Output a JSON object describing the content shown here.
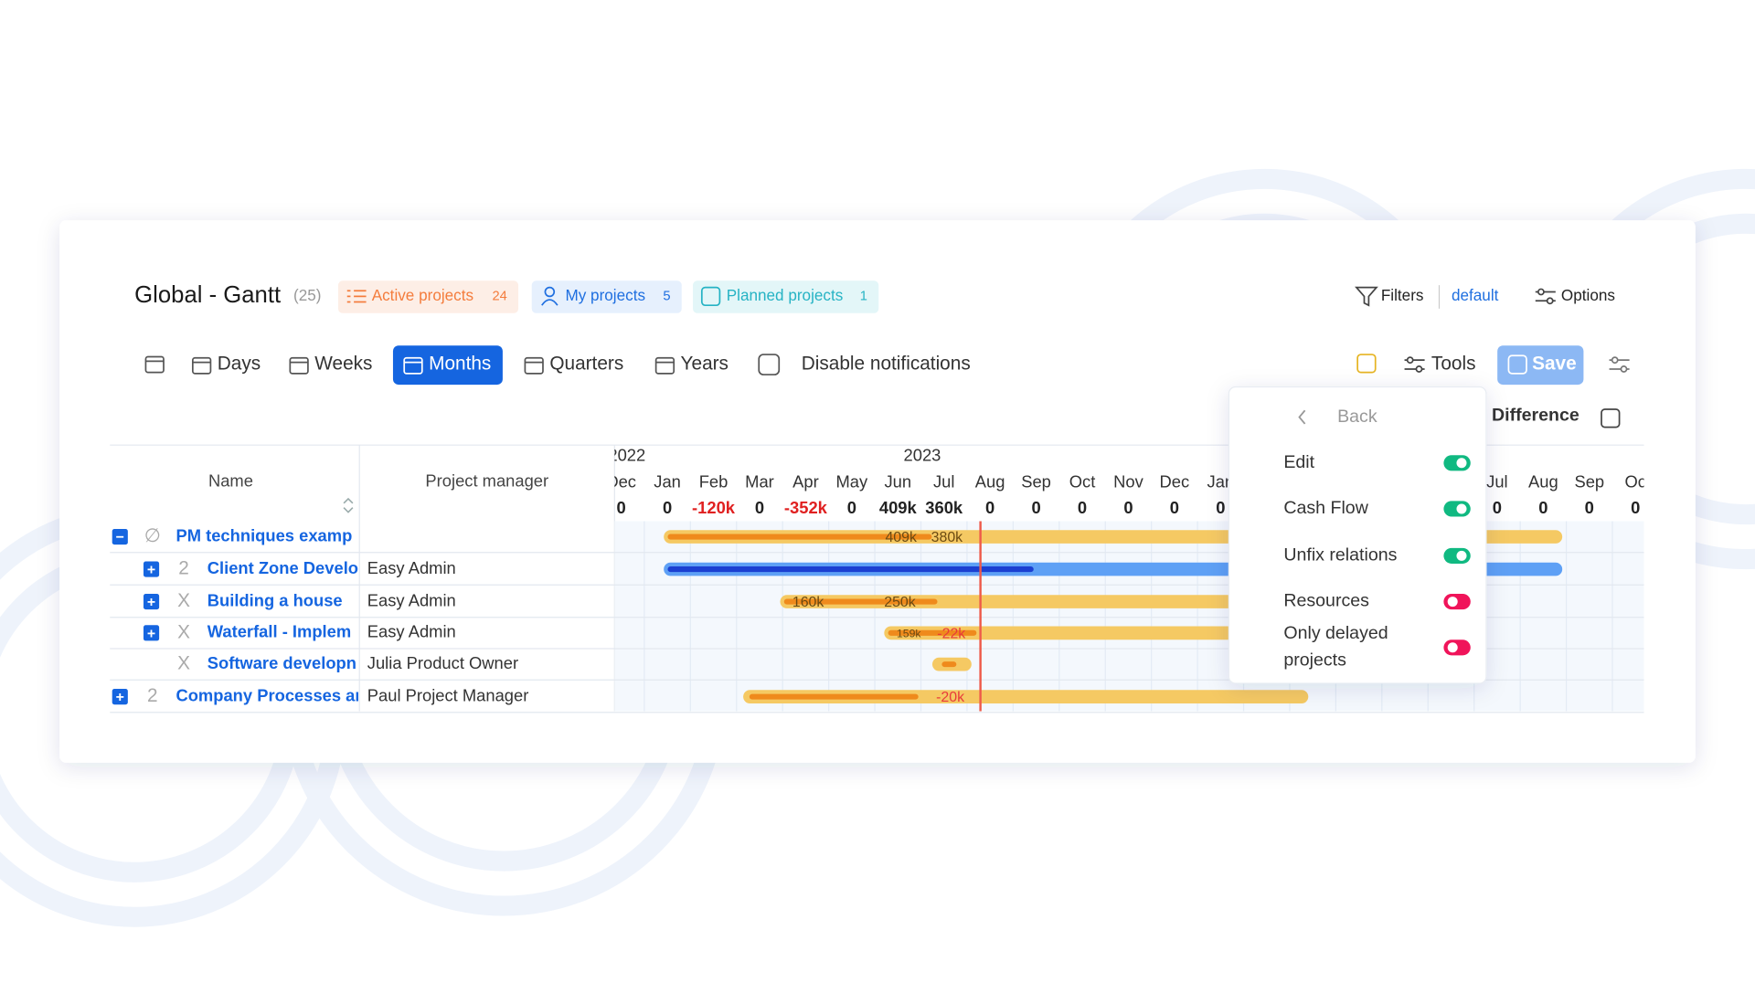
{
  "header": {
    "title": "Global - Gantt",
    "count": "(25)",
    "tabs": [
      {
        "label": "Active projects",
        "count": "24"
      },
      {
        "label": "My projects",
        "count": "5"
      },
      {
        "label": "Planned projects",
        "count": "1"
      }
    ],
    "filters": "Filters",
    "filter_preset": "default",
    "options": "Options"
  },
  "toolbar": {
    "zoom": [
      "Days",
      "Weeks",
      "Months",
      "Quarters",
      "Years"
    ],
    "active_zoom": "Months",
    "disable_notifications": "Disable notifications",
    "tools": "Tools",
    "save": "Save",
    "difference": "Difference"
  },
  "menu": {
    "back": "Back",
    "items": [
      {
        "label": "Edit",
        "on": true
      },
      {
        "label": "Cash Flow",
        "on": true
      },
      {
        "label": "Unfix relations",
        "on": true
      },
      {
        "label": "Resources",
        "on": false
      },
      {
        "label": "Only delayed projects",
        "on": false
      }
    ]
  },
  "table": {
    "columns": [
      "Name",
      "Project manager"
    ],
    "rows": [
      {
        "toggle": "−",
        "marker": "∅",
        "name": "PM techniques examp",
        "manager": null
      },
      {
        "toggle": "+",
        "marker": "2",
        "name": "Client Zone Develo",
        "manager": "Easy Admin"
      },
      {
        "toggle": "+",
        "marker": "X",
        "name": "Building a house",
        "manager": "Easy Admin"
      },
      {
        "toggle": "+",
        "marker": "X",
        "name": "Waterfall - Implem",
        "manager": "Easy Admin"
      },
      {
        "toggle": null,
        "marker": "X",
        "name": "Software developn",
        "manager": "Julia Product Owner"
      },
      {
        "toggle": "+",
        "marker": "2",
        "name": "Company Processes ar",
        "manager": "Paul Project Manager"
      }
    ]
  },
  "timeline": {
    "years": [
      "2022",
      "2023"
    ],
    "months": [
      "Dec",
      "Jan",
      "Feb",
      "Mar",
      "Apr",
      "May",
      "Jun",
      "Jul",
      "Aug",
      "Sep",
      "Oct",
      "Nov",
      "Dec",
      "Jan",
      null,
      null,
      null,
      null,
      null,
      "Jul",
      "Aug",
      "Sep",
      "Oc"
    ],
    "cash_flow": [
      "0",
      "0",
      "-120k",
      "0",
      "-352k",
      "0",
      "409k",
      "360k",
      "0",
      "0",
      "0",
      "0",
      "0",
      "0",
      null,
      null,
      null,
      null,
      null,
      "0",
      "0",
      "0",
      "0"
    ],
    "bar_labels": [
      [
        "409k",
        "380k"
      ],
      [],
      [
        "160k",
        "250k"
      ],
      [
        "159k",
        "-22k"
      ],
      [],
      [
        "-20k"
      ]
    ]
  }
}
